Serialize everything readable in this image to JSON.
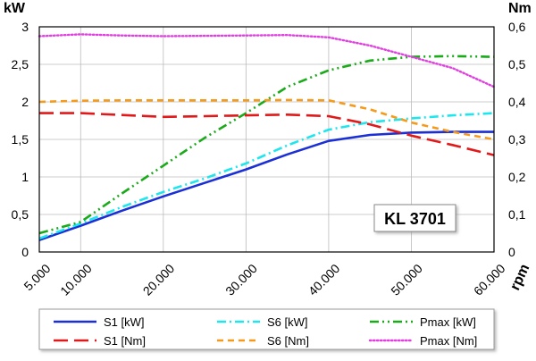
{
  "chart_data": {
    "type": "line",
    "model_label": "KL 3701",
    "y_left_unit": "kW",
    "y_right_unit": "Nm",
    "x_unit": "rpm",
    "x_ticks": [
      5000,
      10000,
      20000,
      30000,
      40000,
      50000,
      60000
    ],
    "x_tick_labels": [
      "5.000",
      "10.000",
      "20.000",
      "30.000",
      "40.000",
      "50.000",
      "60.000"
    ],
    "y_left_ticks": [
      0,
      0.5,
      1,
      1.5,
      2,
      2.5,
      3
    ],
    "y_left_tick_labels": [
      "0",
      "0,5",
      "1",
      "1,5",
      "2",
      "2,5",
      "3"
    ],
    "y_right_ticks": [
      0,
      0.1,
      0.2,
      0.3,
      0.4,
      0.5,
      0.6
    ],
    "y_right_tick_labels": [
      "0",
      "0,1",
      "0,2",
      "0,3",
      "0,4",
      "0,5",
      "0,6"
    ],
    "xlim": [
      5000,
      60000
    ],
    "ylim_left": [
      0,
      3
    ],
    "ylim_right": [
      0,
      0.6
    ],
    "grid": true,
    "legend_position": "bottom",
    "series": [
      {
        "name": "S1 [kW]",
        "axis": "left",
        "color": "#1a2fd6",
        "dash": "solid",
        "x": [
          5000,
          10000,
          15000,
          20000,
          25000,
          30000,
          35000,
          40000,
          45000,
          50000,
          55000,
          60000
        ],
        "y": [
          0.16,
          0.35,
          0.55,
          0.74,
          0.92,
          1.1,
          1.3,
          1.48,
          1.56,
          1.59,
          1.6,
          1.6
        ]
      },
      {
        "name": "S6 [kW]",
        "axis": "left",
        "color": "#1ee6ee",
        "dash": "dashdot",
        "x": [
          5000,
          10000,
          15000,
          20000,
          25000,
          30000,
          35000,
          40000,
          45000,
          50000,
          55000,
          60000
        ],
        "y": [
          0.18,
          0.38,
          0.6,
          0.8,
          0.98,
          1.18,
          1.42,
          1.63,
          1.73,
          1.78,
          1.82,
          1.85
        ]
      },
      {
        "name": "Pmax [kW]",
        "axis": "left",
        "color": "#1aaa1a",
        "dash": "dashdotdot",
        "x": [
          5000,
          10000,
          15000,
          20000,
          25000,
          30000,
          35000,
          40000,
          45000,
          50000,
          55000,
          60000
        ],
        "y": [
          0.25,
          0.4,
          0.78,
          1.15,
          1.52,
          1.85,
          2.2,
          2.42,
          2.55,
          2.6,
          2.61,
          2.6
        ]
      },
      {
        "name": "S1 [Nm]",
        "axis": "right",
        "color": "#e01a1a",
        "dash": "longdash",
        "x": [
          5000,
          10000,
          15000,
          20000,
          25000,
          30000,
          35000,
          40000,
          45000,
          50000,
          55000,
          60000
        ],
        "y": [
          0.37,
          0.37,
          0.365,
          0.36,
          0.362,
          0.364,
          0.366,
          0.362,
          0.34,
          0.31,
          0.285,
          0.258
        ]
      },
      {
        "name": "S6 [Nm]",
        "axis": "right",
        "color": "#f59a1a",
        "dash": "dash",
        "x": [
          5000,
          10000,
          15000,
          20000,
          25000,
          30000,
          35000,
          40000,
          45000,
          50000,
          55000,
          60000
        ],
        "y": [
          0.4,
          0.403,
          0.404,
          0.404,
          0.404,
          0.404,
          0.405,
          0.404,
          0.38,
          0.345,
          0.32,
          0.3
        ]
      },
      {
        "name": "Pmax [Nm]",
        "axis": "right",
        "color": "#e040e0",
        "dash": "dot",
        "x": [
          5000,
          10000,
          15000,
          20000,
          25000,
          30000,
          35000,
          40000,
          45000,
          50000,
          55000,
          60000
        ],
        "y": [
          0.575,
          0.58,
          0.577,
          0.575,
          0.576,
          0.577,
          0.578,
          0.572,
          0.55,
          0.52,
          0.49,
          0.44
        ]
      }
    ],
    "legend_rows": [
      [
        "S1 [kW]",
        "S6 [kW]",
        "Pmax [kW]"
      ],
      [
        "S1 [Nm]",
        "S6 [Nm]",
        "Pmax [Nm]"
      ]
    ]
  }
}
